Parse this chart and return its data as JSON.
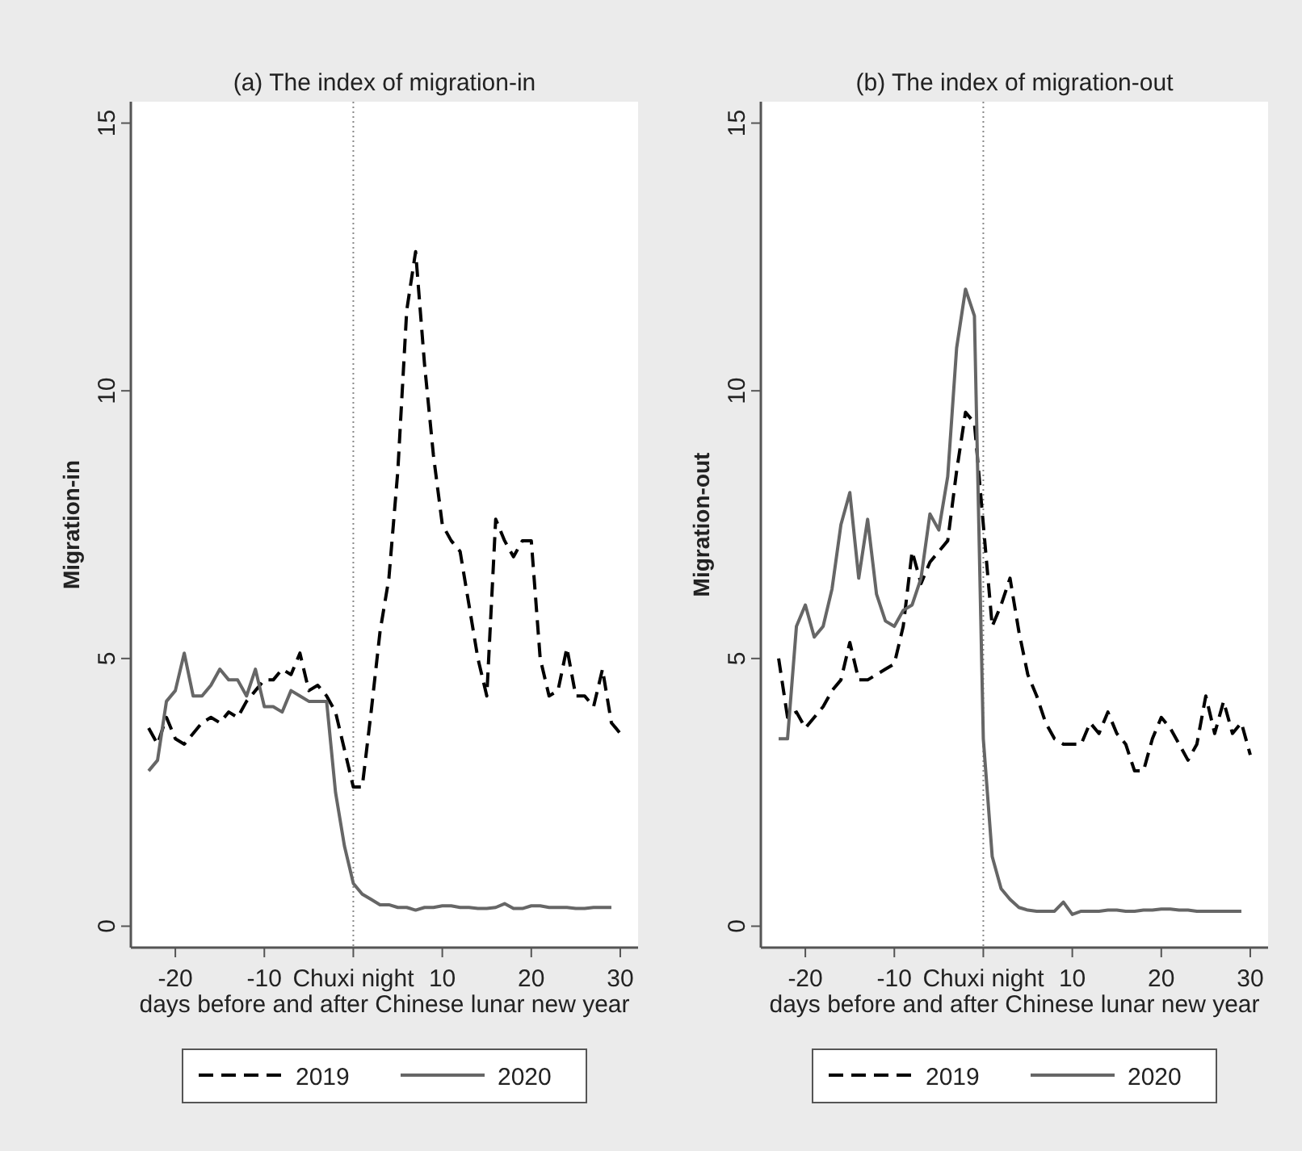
{
  "chart_data": [
    {
      "type": "line",
      "title": "(a) The index of migration-in",
      "xlabel": "days before and after Chinese lunar new year",
      "ylabel": "Migration-in",
      "xlim": [
        -25,
        32
      ],
      "ylim": [
        -0.4,
        15.4
      ],
      "xticks": [
        -20,
        -10,
        {
          "value": 0,
          "label": "Chuxi night"
        },
        10,
        20,
        30
      ],
      "yticks": [
        0,
        5,
        10,
        15
      ],
      "grid": false,
      "legend": "bottom",
      "ref_lines": [
        {
          "axis": "x",
          "value": 0,
          "color": "#888888",
          "line_style": "dotted"
        }
      ],
      "series": [
        {
          "name": "2019",
          "color": "#000000",
          "line_style": "dashed",
          "x": [
            -23,
            -22,
            -21,
            -20,
            -19,
            -18,
            -17,
            -16,
            -15,
            -14,
            -13,
            -12,
            -11,
            -10,
            -9,
            -8,
            -7,
            -6,
            -5,
            -4,
            -3,
            -2,
            -1,
            0,
            1,
            2,
            3,
            4,
            5,
            6,
            7,
            8,
            9,
            10,
            11,
            12,
            13,
            14,
            15,
            16,
            17,
            18,
            19,
            20,
            21,
            22,
            23,
            24,
            25,
            26,
            27,
            28,
            29,
            30
          ],
          "values": [
            3.7,
            3.4,
            3.9,
            3.5,
            3.4,
            3.6,
            3.8,
            3.9,
            3.8,
            4.0,
            3.9,
            4.2,
            4.4,
            4.6,
            4.6,
            4.8,
            4.7,
            5.1,
            4.4,
            4.5,
            4.3,
            4.0,
            3.3,
            2.6,
            2.6,
            4.0,
            5.5,
            6.5,
            8.5,
            11.5,
            12.6,
            10.5,
            8.8,
            7.5,
            7.2,
            7.0,
            6.0,
            5.0,
            4.3,
            7.6,
            7.2,
            6.9,
            7.2,
            7.2,
            5.0,
            4.3,
            4.4,
            5.2,
            4.3,
            4.3,
            4.1,
            4.8,
            3.8,
            3.6
          ]
        },
        {
          "name": "2020",
          "color": "#666666",
          "line_style": "solid",
          "x": [
            -23,
            -22,
            -21,
            -20,
            -19,
            -18,
            -17,
            -16,
            -15,
            -14,
            -13,
            -12,
            -11,
            -10,
            -9,
            -8,
            -7,
            -6,
            -5,
            -4,
            -3,
            -2,
            -1,
            0,
            1,
            2,
            3,
            4,
            5,
            6,
            7,
            8,
            9,
            10,
            11,
            12,
            13,
            14,
            15,
            16,
            17,
            18,
            19,
            20,
            21,
            22,
            23,
            24,
            25,
            26,
            27,
            28,
            29
          ],
          "values": [
            2.9,
            3.1,
            4.2,
            4.4,
            5.1,
            4.3,
            4.3,
            4.5,
            4.8,
            4.6,
            4.6,
            4.3,
            4.8,
            4.1,
            4.1,
            4.0,
            4.4,
            4.3,
            4.2,
            4.2,
            4.2,
            2.5,
            1.5,
            0.8,
            0.6,
            0.5,
            0.4,
            0.4,
            0.35,
            0.35,
            0.3,
            0.35,
            0.35,
            0.38,
            0.38,
            0.35,
            0.35,
            0.33,
            0.33,
            0.35,
            0.42,
            0.33,
            0.33,
            0.38,
            0.38,
            0.35,
            0.35,
            0.35,
            0.33,
            0.33,
            0.35,
            0.35,
            0.35
          ]
        }
      ]
    },
    {
      "type": "line",
      "title": "(b) The index of migration-out",
      "xlabel": "days before and after Chinese lunar new year",
      "ylabel": "Migration-out",
      "xlim": [
        -25,
        32
      ],
      "ylim": [
        -0.4,
        15.4
      ],
      "xticks": [
        -20,
        -10,
        {
          "value": 0,
          "label": "Chuxi night"
        },
        10,
        20,
        30
      ],
      "yticks": [
        0,
        5,
        10,
        15
      ],
      "grid": false,
      "legend": "bottom",
      "ref_lines": [
        {
          "axis": "x",
          "value": 0,
          "color": "#888888",
          "line_style": "dotted"
        }
      ],
      "series": [
        {
          "name": "2019",
          "color": "#000000",
          "line_style": "dashed",
          "x": [
            -23,
            -22,
            -21,
            -20,
            -19,
            -18,
            -17,
            -16,
            -15,
            -14,
            -13,
            -12,
            -11,
            -10,
            -9,
            -8,
            -7,
            -6,
            -5,
            -4,
            -3,
            -2,
            -1,
            0,
            1,
            2,
            3,
            4,
            5,
            6,
            7,
            8,
            9,
            10,
            11,
            12,
            13,
            14,
            15,
            16,
            17,
            18,
            19,
            20,
            21,
            22,
            23,
            24,
            25,
            26,
            27,
            28,
            29,
            30
          ],
          "values": [
            5.0,
            3.9,
            4.0,
            3.7,
            3.9,
            4.1,
            4.4,
            4.6,
            5.3,
            4.6,
            4.6,
            4.7,
            4.8,
            4.9,
            5.6,
            7.0,
            6.4,
            6.8,
            7.0,
            7.2,
            8.5,
            9.6,
            9.4,
            7.5,
            5.6,
            6.0,
            6.5,
            5.5,
            4.7,
            4.3,
            3.8,
            3.5,
            3.4,
            3.4,
            3.4,
            3.8,
            3.6,
            4.0,
            3.6,
            3.4,
            2.9,
            2.9,
            3.5,
            3.9,
            3.7,
            3.4,
            3.1,
            3.4,
            4.3,
            3.6,
            4.2,
            3.6,
            3.8,
            3.2
          ]
        },
        {
          "name": "2020",
          "color": "#666666",
          "line_style": "solid",
          "x": [
            -23,
            -22,
            -21,
            -20,
            -19,
            -18,
            -17,
            -16,
            -15,
            -14,
            -13,
            -12,
            -11,
            -10,
            -9,
            -8,
            -7,
            -6,
            -5,
            -4,
            -3,
            -2,
            -1,
            0,
            1,
            2,
            3,
            4,
            5,
            6,
            7,
            8,
            9,
            10,
            11,
            12,
            13,
            14,
            15,
            16,
            17,
            18,
            19,
            20,
            21,
            22,
            23,
            24,
            25,
            26,
            27,
            28,
            29
          ],
          "values": [
            3.5,
            3.5,
            5.6,
            6.0,
            5.4,
            5.6,
            6.3,
            7.5,
            8.1,
            6.5,
            7.6,
            6.2,
            5.7,
            5.6,
            5.9,
            6.0,
            6.5,
            7.7,
            7.4,
            8.4,
            10.8,
            11.9,
            11.4,
            3.5,
            1.3,
            0.7,
            0.5,
            0.35,
            0.3,
            0.28,
            0.28,
            0.28,
            0.45,
            0.22,
            0.28,
            0.28,
            0.28,
            0.3,
            0.3,
            0.28,
            0.28,
            0.3,
            0.3,
            0.32,
            0.32,
            0.3,
            0.3,
            0.28,
            0.28,
            0.28,
            0.28,
            0.28,
            0.28
          ]
        }
      ]
    }
  ]
}
